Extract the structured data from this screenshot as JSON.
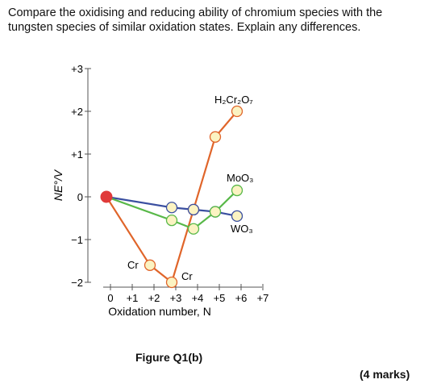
{
  "question": {
    "text": "Compare the oxidising and reducing ability of chromium species with the tungsten species of similar oxidation states.  Explain any differences."
  },
  "figure": {
    "caption": "Figure Q1(b)",
    "marks": "(4 marks)"
  },
  "chart_data": {
    "type": "line",
    "xlabel": "Oxidation number, N",
    "ylabel": "NE°/V",
    "xlim": [
      0,
      7
    ],
    "ylim": [
      -2,
      3
    ],
    "x_ticks": [
      "0",
      "+1",
      "+2",
      "+3",
      "+4",
      "+5",
      "+6",
      "+7"
    ],
    "y_ticks": [
      "+3",
      "+2",
      "+1",
      "0",
      "−1",
      "−2"
    ],
    "grid": false,
    "series": [
      {
        "color": "#e0652a",
        "points": [
          [
            0,
            0
          ],
          [
            2,
            -1.6
          ],
          [
            3,
            -2.0
          ],
          [
            4,
            -0.3
          ],
          [
            5,
            1.4
          ],
          [
            6,
            2.0
          ]
        ]
      },
      {
        "color": "#3a4fa0",
        "points": [
          [
            0,
            0
          ],
          [
            3,
            -0.25
          ],
          [
            4,
            -0.3
          ],
          [
            5,
            -0.35
          ],
          [
            6,
            -0.45
          ]
        ]
      },
      {
        "color": "#58b848",
        "points": [
          [
            0,
            0
          ],
          [
            3,
            -0.55
          ],
          [
            4,
            -0.75
          ],
          [
            5,
            -0.35
          ],
          [
            6,
            0.15
          ]
        ]
      }
    ],
    "origin_point": {
      "x": 0,
      "y": 0,
      "color": "#e03a3a"
    },
    "annotations": {
      "h2cr2o7": "H₂Cr₂O₇",
      "moo3": "MoO₃",
      "wo3": "WO₃",
      "cr_a": "Cr",
      "cr_b": "Cr"
    },
    "point_fill": "#fbf3c2"
  }
}
